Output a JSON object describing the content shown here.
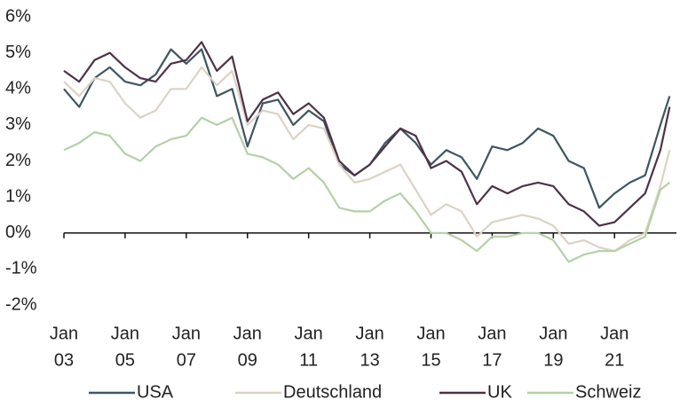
{
  "chart_data": {
    "type": "line",
    "x": [
      2003,
      2003.5,
      2004,
      2004.5,
      2005,
      2005.5,
      2006,
      2006.5,
      2007,
      2007.5,
      2008,
      2008.5,
      2009,
      2009.5,
      2010,
      2010.5,
      2011,
      2011.5,
      2012,
      2012.5,
      2013,
      2013.5,
      2014,
      2014.5,
      2015,
      2015.5,
      2016,
      2016.5,
      2017,
      2017.5,
      2018,
      2018.5,
      2019,
      2019.5,
      2020,
      2020.5,
      2021,
      2021.5,
      2022,
      2022.5,
      2022.8
    ],
    "series": [
      {
        "name": "USA",
        "color": "#3e5660",
        "values": [
          4.0,
          3.5,
          4.3,
          4.6,
          4.2,
          4.1,
          4.4,
          5.1,
          4.7,
          5.1,
          3.8,
          4.0,
          2.4,
          3.6,
          3.7,
          3.0,
          3.4,
          3.1,
          1.9,
          1.6,
          1.9,
          2.5,
          2.9,
          2.5,
          1.9,
          2.3,
          2.1,
          1.5,
          2.4,
          2.3,
          2.5,
          2.9,
          2.7,
          2.0,
          1.8,
          0.7,
          1.1,
          1.4,
          1.6,
          3.0,
          3.8
        ]
      },
      {
        "name": "Deutschland",
        "color": "#dcd3c5",
        "values": [
          4.2,
          3.8,
          4.3,
          4.2,
          3.6,
          3.2,
          3.4,
          4.0,
          4.0,
          4.6,
          4.1,
          4.5,
          3.0,
          3.4,
          3.3,
          2.6,
          3.0,
          2.9,
          1.9,
          1.4,
          1.5,
          1.7,
          1.9,
          1.2,
          0.5,
          0.8,
          0.6,
          -0.1,
          0.3,
          0.4,
          0.5,
          0.4,
          0.2,
          -0.3,
          -0.2,
          -0.4,
          -0.5,
          -0.2,
          0.0,
          1.3,
          2.3
        ]
      },
      {
        "name": "UK",
        "color": "#4e3247",
        "values": [
          4.5,
          4.2,
          4.8,
          5.0,
          4.6,
          4.3,
          4.2,
          4.7,
          4.8,
          5.3,
          4.5,
          4.9,
          3.1,
          3.7,
          3.9,
          3.3,
          3.6,
          3.2,
          2.0,
          1.6,
          1.9,
          2.4,
          2.9,
          2.7,
          1.8,
          2.0,
          1.7,
          0.8,
          1.3,
          1.1,
          1.3,
          1.4,
          1.3,
          0.8,
          0.6,
          0.2,
          0.3,
          0.7,
          1.1,
          2.3,
          3.5
        ]
      },
      {
        "name": "Schweiz",
        "color": "#b6cfa8",
        "values": [
          2.3,
          2.5,
          2.8,
          2.7,
          2.2,
          2.0,
          2.4,
          2.6,
          2.7,
          3.2,
          3.0,
          3.2,
          2.2,
          2.1,
          1.9,
          1.5,
          1.8,
          1.4,
          0.7,
          0.6,
          0.6,
          0.9,
          1.1,
          0.6,
          0.0,
          0.0,
          -0.2,
          -0.5,
          -0.1,
          -0.1,
          0.0,
          0.0,
          -0.2,
          -0.8,
          -0.6,
          -0.5,
          -0.5,
          -0.3,
          -0.1,
          1.2,
          1.4
        ]
      }
    ],
    "xlim": [
      2003,
      2022.85
    ],
    "xticks": [
      {
        "value": 2003,
        "label": [
          "Jan",
          "03"
        ]
      },
      {
        "value": 2005,
        "label": [
          "Jan",
          "05"
        ]
      },
      {
        "value": 2007,
        "label": [
          "Jan",
          "07"
        ]
      },
      {
        "value": 2009,
        "label": [
          "Jan",
          "09"
        ]
      },
      {
        "value": 2011,
        "label": [
          "Jan",
          "11"
        ]
      },
      {
        "value": 2013,
        "label": [
          "Jan",
          "13"
        ]
      },
      {
        "value": 2015,
        "label": [
          "Jan",
          "15"
        ]
      },
      {
        "value": 2017,
        "label": [
          "Jan",
          "17"
        ]
      },
      {
        "value": 2019,
        "label": [
          "Jan",
          "19"
        ]
      },
      {
        "value": 2021,
        "label": [
          "Jan",
          "21"
        ]
      }
    ],
    "ylim": [
      -2,
      6
    ],
    "yticks": [
      {
        "value": -2,
        "label": "-2%"
      },
      {
        "value": -1,
        "label": "-1%"
      },
      {
        "value": 0,
        "label": "0%"
      },
      {
        "value": 1,
        "label": "1%"
      },
      {
        "value": 2,
        "label": "2%"
      },
      {
        "value": 3,
        "label": "3%"
      },
      {
        "value": 4,
        "label": "4%"
      },
      {
        "value": 5,
        "label": "5%"
      },
      {
        "value": 6,
        "label": "6%"
      }
    ],
    "legend": "bottom"
  }
}
